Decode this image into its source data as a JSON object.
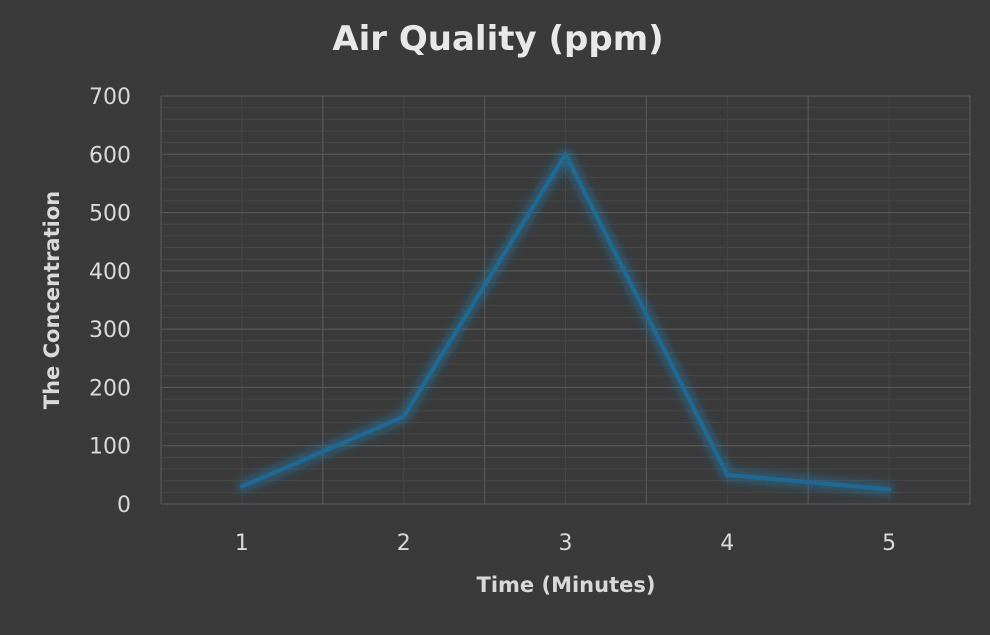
{
  "chart_data": {
    "type": "line",
    "title": "Air Quality (ppm)",
    "xlabel": "Time (Minutes)",
    "ylabel": "The Concentration",
    "categories": [
      "1",
      "2",
      "3",
      "4",
      "5"
    ],
    "series": [
      {
        "values": [
          30,
          150,
          600,
          50,
          25
        ]
      }
    ],
    "ylim": [
      0,
      700
    ],
    "yticks": [
      "0",
      "100",
      "200",
      "300",
      "400",
      "500",
      "600",
      "700"
    ],
    "grid": true,
    "legend": "none"
  },
  "colors": {
    "background": "#3a3a3a",
    "line": "#1d6a96",
    "glow": "#1f84b8",
    "gridMajor": "#575757",
    "gridMinor": "#474747",
    "text": "#d9d9d9",
    "title": "#e8e8e8"
  }
}
